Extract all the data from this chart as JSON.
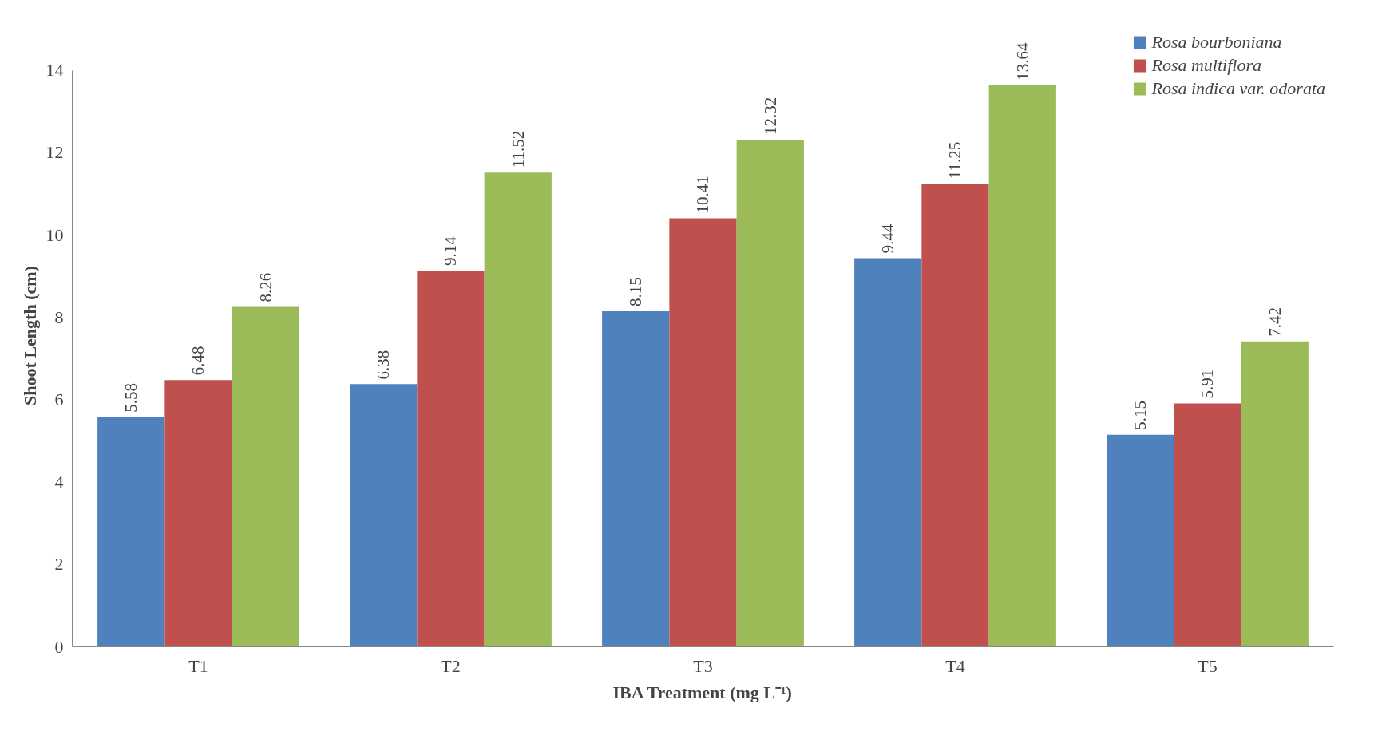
{
  "chart_data": {
    "type": "bar",
    "xlabel": "IBA Treatment (mg L⁻¹)",
    "ylabel": "Shoot Length (cm)",
    "categories": [
      "T1",
      "T2",
      "T3",
      "T4",
      "T5"
    ],
    "series": [
      {
        "name": "Rosa bourboniana",
        "color": "#4f81bd",
        "values": [
          5.58,
          6.38,
          8.15,
          9.44,
          5.15
        ]
      },
      {
        "name": "Rosa multiflora",
        "color": "#c0504d",
        "values": [
          6.48,
          9.14,
          10.41,
          11.25,
          5.91
        ]
      },
      {
        "name": "Rosa indica var. odorata",
        "color": "#9bbb59",
        "values": [
          8.26,
          11.52,
          12.32,
          13.64,
          7.42
        ]
      }
    ],
    "ylim": [
      0,
      14
    ],
    "yticks": [
      0,
      2,
      4,
      6,
      8,
      10,
      12,
      14
    ],
    "grid": false,
    "legend": "top right",
    "data_labels": true
  }
}
